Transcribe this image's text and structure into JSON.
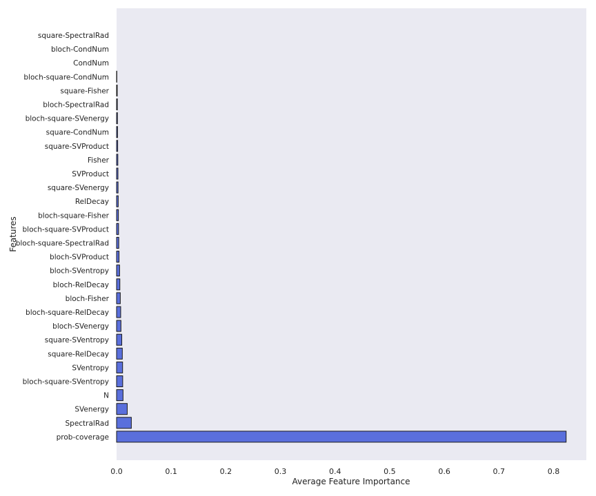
{
  "chart_data": {
    "type": "bar",
    "orientation": "horizontal",
    "xlabel": "Average Feature Importance",
    "ylabel": "Features",
    "xlim": [
      0,
      0.86
    ],
    "xticks": [
      0.0,
      0.1,
      0.2,
      0.3,
      0.4,
      0.5,
      0.6,
      0.7,
      0.8
    ],
    "xtick_labels": [
      "0.0",
      "0.1",
      "0.2",
      "0.3",
      "0.4",
      "0.5",
      "0.6",
      "0.7",
      "0.8"
    ],
    "grid": false,
    "colors": {
      "background": "#eaeaf2",
      "bar": "#5a6fdc",
      "edge": "#1a1a1a"
    },
    "categories": [
      "square-SpectralRad",
      "bloch-CondNum",
      "CondNum",
      "bloch-square-CondNum",
      "square-Fisher",
      "bloch-SpectralRad",
      "bloch-square-SVenergy",
      "square-CondNum",
      "square-SVProduct",
      "Fisher",
      "SVProduct",
      "square-SVenergy",
      "RelDecay",
      "bloch-square-Fisher",
      "bloch-square-SVProduct",
      "bloch-square-SpectralRad",
      "bloch-SVProduct",
      "bloch-SVentropy",
      "bloch-RelDecay",
      "bloch-Fisher",
      "bloch-square-RelDecay",
      "bloch-SVenergy",
      "square-SVentropy",
      "square-RelDecay",
      "SVentropy",
      "bloch-square-SVentropy",
      "N",
      "SVenergy",
      "SpectralRad",
      "prob-coverage"
    ],
    "values": [
      0.0,
      0.0,
      0.0,
      0.0005,
      0.0012,
      0.0014,
      0.0016,
      0.0018,
      0.002,
      0.0023,
      0.0025,
      0.0027,
      0.003,
      0.0033,
      0.0036,
      0.004,
      0.0045,
      0.0055,
      0.006,
      0.0068,
      0.0075,
      0.008,
      0.0095,
      0.0105,
      0.011,
      0.0112,
      0.0118,
      0.0195,
      0.027,
      0.823
    ]
  }
}
